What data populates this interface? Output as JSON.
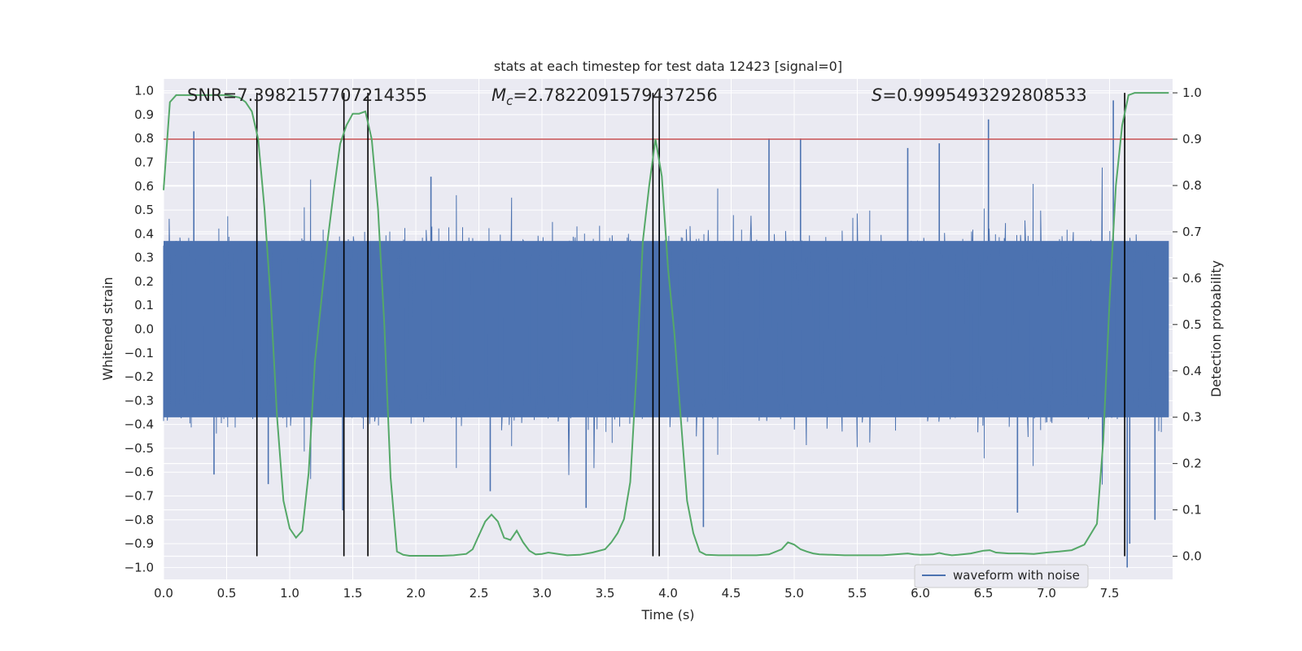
{
  "chart_data": {
    "type": "line",
    "title": "stats at each timestep for test data 12423 [signal=0]",
    "xlabel": "Time (s)",
    "ylabel_left": "Whitened strain",
    "ylabel_right": "Detection probability",
    "xlim": [
      0,
      8
    ],
    "ylim_left": [
      -1.05,
      1.05
    ],
    "ylim_right": [
      -0.05,
      1.03
    ],
    "x_ticks": [
      0.0,
      0.5,
      1.0,
      1.5,
      2.0,
      2.5,
      3.0,
      3.5,
      4.0,
      4.5,
      5.0,
      5.5,
      6.0,
      6.5,
      7.0,
      7.5
    ],
    "x_tick_labels": [
      "0.0",
      "0.5",
      "1.0",
      "1.5",
      "2.0",
      "2.5",
      "3.0",
      "3.5",
      "4.0",
      "4.5",
      "5.0",
      "5.5",
      "6.0",
      "6.5",
      "7.0",
      "7.5"
    ],
    "y_left_ticks": [
      1.0,
      0.9,
      0.8,
      0.7,
      0.6,
      0.5,
      0.4,
      0.3,
      0.2,
      0.1,
      0.0,
      -0.1,
      -0.2,
      -0.3,
      -0.4,
      -0.5,
      -0.6,
      -0.7,
      -0.8,
      -0.9,
      -1.0
    ],
    "y_left_tick_labels": [
      "1.0",
      "0.9",
      "0.8",
      "0.7",
      "0.6",
      "0.5",
      "0.4",
      "0.3",
      "0.2",
      "0.1",
      "0.0",
      "−0.1",
      "−0.2",
      "−0.3",
      "−0.4",
      "−0.5",
      "−0.6",
      "−0.7",
      "−0.8",
      "−0.9",
      "−1.0"
    ],
    "y_right_ticks": [
      1.0,
      0.9,
      0.8,
      0.7,
      0.6,
      0.5,
      0.4,
      0.3,
      0.2,
      0.1,
      0.0
    ],
    "y_right_tick_labels": [
      "1.0",
      "0.9",
      "0.8",
      "0.7",
      "0.6",
      "0.5",
      "0.4",
      "0.3",
      "0.2",
      "0.1",
      "0.0"
    ],
    "threshold": 0.9,
    "annotations": {
      "snr": "SNR=7.3982157707214355",
      "mc_prefix": "M",
      "mc_sub": "c",
      "mc_value": "=2.7822091579437256",
      "s_prefix": "S",
      "s_value": "=0.9995493292808533"
    },
    "legend": {
      "label": "waveform with noise",
      "location": "lower-right"
    },
    "vertical_lines_x": [
      0.74,
      1.43,
      1.62,
      3.88,
      3.93,
      7.62
    ],
    "waveform": {
      "name": "waveform with noise",
      "sample_count": 1600,
      "core_amplitude": 0.37,
      "seed": 12423,
      "spikes": [
        {
          "t": 0.24,
          "v": 0.83
        },
        {
          "t": 0.4,
          "v": -0.61
        },
        {
          "t": 0.74,
          "v": 0.55
        },
        {
          "t": 0.83,
          "v": -0.65
        },
        {
          "t": 1.42,
          "v": -0.76
        },
        {
          "t": 2.12,
          "v": 0.64
        },
        {
          "t": 2.59,
          "v": -0.68
        },
        {
          "t": 3.35,
          "v": -0.75
        },
        {
          "t": 3.93,
          "v": 0.76
        },
        {
          "t": 4.28,
          "v": -0.83
        },
        {
          "t": 4.8,
          "v": 0.8
        },
        {
          "t": 5.05,
          "v": 0.8
        },
        {
          "t": 5.9,
          "v": 0.76
        },
        {
          "t": 6.15,
          "v": 0.78
        },
        {
          "t": 6.54,
          "v": 0.88
        },
        {
          "t": 6.77,
          "v": -0.77
        },
        {
          "t": 7.53,
          "v": 0.96
        },
        {
          "t": 7.64,
          "v": -1.0
        },
        {
          "t": 7.66,
          "v": -0.9
        },
        {
          "t": 7.86,
          "v": -0.8
        }
      ]
    },
    "series": [
      {
        "name": "Detection probability",
        "color": "#55a868",
        "x": [
          0.0,
          0.05,
          0.1,
          0.15,
          0.2,
          0.3,
          0.4,
          0.5,
          0.6,
          0.65,
          0.7,
          0.75,
          0.8,
          0.85,
          0.9,
          0.95,
          1.0,
          1.05,
          1.1,
          1.15,
          1.2,
          1.25,
          1.3,
          1.35,
          1.4,
          1.45,
          1.5,
          1.55,
          1.6,
          1.65,
          1.7,
          1.75,
          1.8,
          1.85,
          1.9,
          1.95,
          2.0,
          2.1,
          2.2,
          2.3,
          2.4,
          2.45,
          2.5,
          2.55,
          2.6,
          2.65,
          2.7,
          2.75,
          2.8,
          2.85,
          2.9,
          2.95,
          3.0,
          3.05,
          3.1,
          3.2,
          3.3,
          3.4,
          3.5,
          3.55,
          3.6,
          3.65,
          3.7,
          3.75,
          3.8,
          3.85,
          3.9,
          3.95,
          4.0,
          4.05,
          4.1,
          4.15,
          4.2,
          4.25,
          4.3,
          4.4,
          4.5,
          4.6,
          4.7,
          4.8,
          4.9,
          4.95,
          5.0,
          5.05,
          5.1,
          5.15,
          5.2,
          5.3,
          5.4,
          5.5,
          5.6,
          5.7,
          5.8,
          5.9,
          5.95,
          6.0,
          6.1,
          6.15,
          6.2,
          6.25,
          6.3,
          6.4,
          6.5,
          6.55,
          6.6,
          6.7,
          6.8,
          6.9,
          7.0,
          7.1,
          7.2,
          7.3,
          7.4,
          7.45,
          7.5,
          7.55,
          7.6,
          7.65,
          7.7,
          7.75,
          7.8,
          7.9,
          7.97
        ],
        "values": [
          0.79,
          0.98,
          0.995,
          0.995,
          0.995,
          0.995,
          0.995,
          0.995,
          0.99,
          0.98,
          0.96,
          0.9,
          0.75,
          0.55,
          0.3,
          0.12,
          0.06,
          0.04,
          0.055,
          0.18,
          0.42,
          0.55,
          0.68,
          0.79,
          0.89,
          0.93,
          0.955,
          0.955,
          0.96,
          0.9,
          0.75,
          0.5,
          0.17,
          0.01,
          0.003,
          0.001,
          0.001,
          0.001,
          0.001,
          0.002,
          0.005,
          0.015,
          0.045,
          0.075,
          0.09,
          0.075,
          0.04,
          0.035,
          0.055,
          0.03,
          0.012,
          0.004,
          0.005,
          0.008,
          0.006,
          0.002,
          0.003,
          0.008,
          0.015,
          0.03,
          0.05,
          0.08,
          0.16,
          0.4,
          0.68,
          0.8,
          0.9,
          0.82,
          0.62,
          0.48,
          0.3,
          0.12,
          0.05,
          0.01,
          0.003,
          0.002,
          0.002,
          0.002,
          0.002,
          0.004,
          0.015,
          0.03,
          0.025,
          0.015,
          0.01,
          0.006,
          0.004,
          0.003,
          0.002,
          0.002,
          0.002,
          0.002,
          0.004,
          0.006,
          0.004,
          0.003,
          0.004,
          0.007,
          0.004,
          0.002,
          0.003,
          0.006,
          0.012,
          0.013,
          0.008,
          0.006,
          0.006,
          0.005,
          0.008,
          0.01,
          0.013,
          0.025,
          0.07,
          0.25,
          0.55,
          0.8,
          0.93,
          0.995,
          1.0,
          1.0,
          1.0,
          1.0,
          1.0
        ]
      }
    ],
    "colors": {
      "background": "#eaeaf2",
      "grid": "#ffffff",
      "waveform": "#4c72b0",
      "probability": "#55a868",
      "threshold": "#c44e52",
      "vlines": "#000000"
    }
  }
}
